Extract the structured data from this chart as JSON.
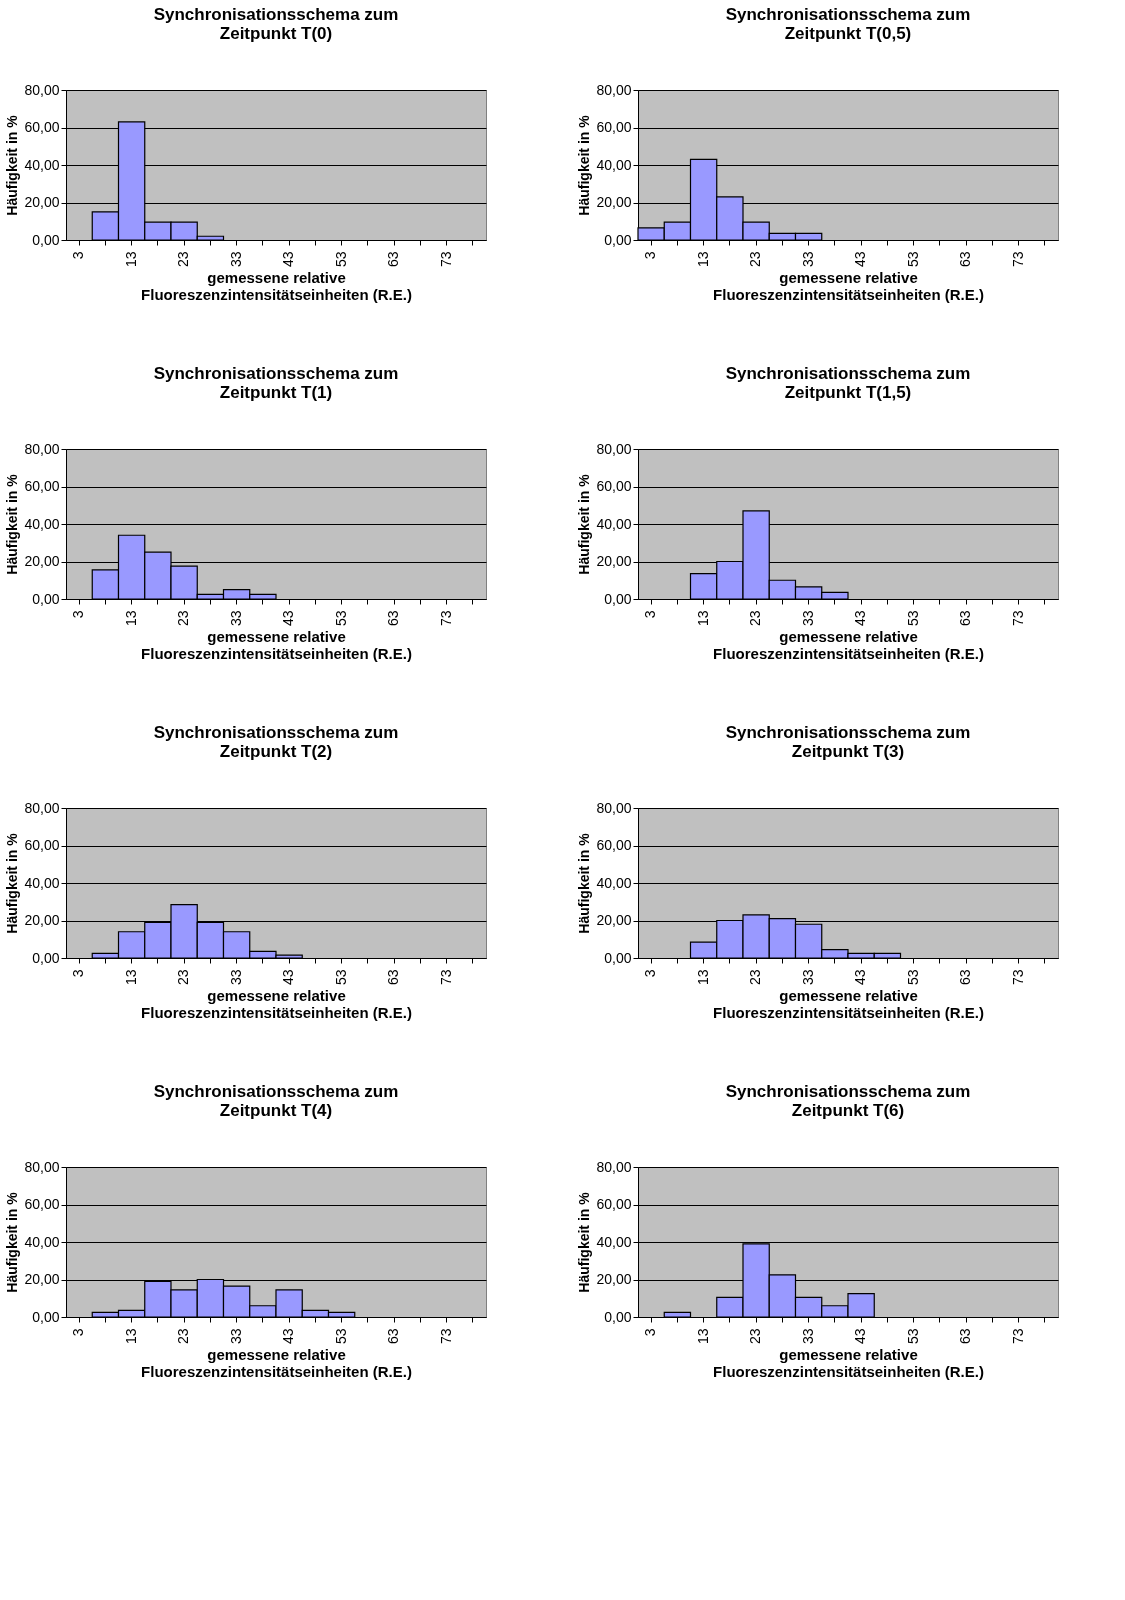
{
  "chart_data": [
    {
      "type": "bar",
      "title": "Synchronisationsschema zum\nZeitpunkt T(0)",
      "xlabel": "gemessene relative\nFluoreszenzintensitätseinheiten (R.E.)",
      "ylabel": "Häufigkeit in %",
      "categories": [
        "3",
        null,
        "13",
        null,
        "23",
        null,
        "33",
        null,
        "43",
        null,
        "53",
        null,
        "63",
        null,
        "73",
        null
      ],
      "values": [
        null,
        15,
        63,
        9.5,
        9.5,
        2,
        null,
        null,
        null,
        null,
        null,
        null,
        null,
        null,
        null,
        null
      ],
      "color": "#9999ff",
      "ylim": [
        0,
        80
      ],
      "yticks": [
        {
          "value": 0,
          "label": "0,00"
        },
        {
          "value": 20,
          "label": "20,00"
        },
        {
          "value": 40,
          "label": "40,00"
        },
        {
          "value": 60,
          "label": "60,00"
        },
        {
          "value": 80,
          "label": "80,00"
        }
      ],
      "grid": "y"
    },
    {
      "type": "bar",
      "title": "Synchronisationsschema zum\nZeitpunkt T(0,5)",
      "xlabel": "gemessene relative\nFluoreszenzintensitätseinheiten (R.E.)",
      "ylabel": "Häufigkeit in %",
      "categories": [
        "3",
        null,
        "13",
        null,
        "23",
        null,
        "33",
        null,
        "43",
        null,
        "53",
        null,
        "63",
        null,
        "73",
        null
      ],
      "values": [
        6.5,
        9.5,
        43,
        23,
        9.5,
        3.5,
        3.5,
        null,
        null,
        null,
        null,
        null,
        null,
        null,
        null,
        null
      ],
      "color": "#9999ff",
      "ylim": [
        0,
        80
      ],
      "yticks": [
        {
          "value": 0,
          "label": "0,00"
        },
        {
          "value": 20,
          "label": "20,00"
        },
        {
          "value": 40,
          "label": "40,00"
        },
        {
          "value": 60,
          "label": "60,00"
        },
        {
          "value": 80,
          "label": "80,00"
        }
      ],
      "grid": "y"
    },
    {
      "type": "bar",
      "title": "Synchronisationsschema zum\nZeitpunkt T(1)",
      "xlabel": "gemessene relative\nFluoreszenzintensitätseinheiten (R.E.)",
      "ylabel": "Häufigkeit in %",
      "categories": [
        "3",
        null,
        "13",
        null,
        "23",
        null,
        "33",
        null,
        "43",
        null,
        "53",
        null,
        "63",
        null,
        "73",
        null
      ],
      "values": [
        null,
        15.5,
        34,
        25,
        17.5,
        2.5,
        5,
        2.5,
        null,
        null,
        null,
        null,
        null,
        null,
        null,
        null
      ],
      "color": "#9999ff",
      "ylim": [
        0,
        80
      ],
      "yticks": [
        {
          "value": 0,
          "label": "0,00"
        },
        {
          "value": 20,
          "label": "20,00"
        },
        {
          "value": 40,
          "label": "40,00"
        },
        {
          "value": 60,
          "label": "60,00"
        },
        {
          "value": 80,
          "label": "80,00"
        }
      ],
      "grid": "y"
    },
    {
      "type": "bar",
      "title": "Synchronisationsschema zum\nZeitpunkt T(1,5)",
      "xlabel": "gemessene relative\nFluoreszenzintensitätseinheiten (R.E.)",
      "ylabel": "Häufigkeit in %",
      "categories": [
        "3",
        null,
        "13",
        null,
        "23",
        null,
        "33",
        null,
        "43",
        null,
        "53",
        null,
        "63",
        null,
        "73",
        null
      ],
      "values": [
        null,
        null,
        13.5,
        20,
        47,
        10,
        6.5,
        3.5,
        null,
        null,
        null,
        null,
        null,
        null,
        null,
        null
      ],
      "color": "#9999ff",
      "ylim": [
        0,
        80
      ],
      "yticks": [
        {
          "value": 0,
          "label": "0,00"
        },
        {
          "value": 20,
          "label": "20,00"
        },
        {
          "value": 40,
          "label": "40,00"
        },
        {
          "value": 60,
          "label": "60,00"
        },
        {
          "value": 80,
          "label": "80,00"
        }
      ],
      "grid": "y"
    },
    {
      "type": "bar",
      "title": "Synchronisationsschema zum\nZeitpunkt T(2)",
      "xlabel": "gemessene relative\nFluoreszenzintensitätseinheiten (R.E.)",
      "ylabel": "Häufigkeit in %",
      "categories": [
        "3",
        null,
        "13",
        null,
        "23",
        null,
        "33",
        null,
        "43",
        null,
        "53",
        null,
        "63",
        null,
        "73",
        null
      ],
      "values": [
        null,
        2.5,
        14,
        19,
        28.5,
        19,
        14,
        3.5,
        1.5,
        null,
        null,
        null,
        null,
        null,
        null,
        null
      ],
      "color": "#9999ff",
      "ylim": [
        0,
        80
      ],
      "yticks": [
        {
          "value": 0,
          "label": "0,00"
        },
        {
          "value": 20,
          "label": "20,00"
        },
        {
          "value": 40,
          "label": "40,00"
        },
        {
          "value": 60,
          "label": "60,00"
        },
        {
          "value": 80,
          "label": "80,00"
        }
      ],
      "grid": "y"
    },
    {
      "type": "bar",
      "title": "Synchronisationsschema zum\nZeitpunkt T(3)",
      "xlabel": "gemessene relative\nFluoreszenzintensitätseinheiten (R.E.)",
      "ylabel": "Häufigkeit in %",
      "categories": [
        "3",
        null,
        "13",
        null,
        "23",
        null,
        "33",
        null,
        "43",
        null,
        "53",
        null,
        "63",
        null,
        "73",
        null
      ],
      "values": [
        null,
        null,
        8.5,
        20,
        23,
        21,
        18,
        4.5,
        2.5,
        2.5,
        null,
        null,
        null,
        null,
        null,
        null
      ],
      "color": "#9999ff",
      "ylim": [
        0,
        80
      ],
      "yticks": [
        {
          "value": 0,
          "label": "0,00"
        },
        {
          "value": 20,
          "label": "20,00"
        },
        {
          "value": 40,
          "label": "40,00"
        },
        {
          "value": 60,
          "label": "60,00"
        },
        {
          "value": 80,
          "label": "80,00"
        }
      ],
      "grid": "y"
    },
    {
      "type": "bar",
      "title": "Synchronisationsschema zum\nZeitpunkt T(4)",
      "xlabel": "gemessene relative\nFluoreszenzintensitätseinheiten (R.E.)",
      "ylabel": "Häufigkeit in %",
      "categories": [
        "3",
        null,
        "13",
        null,
        "23",
        null,
        "33",
        null,
        "43",
        null,
        "53",
        null,
        "63",
        null,
        "73",
        null
      ],
      "values": [
        null,
        2.5,
        3.5,
        19,
        14.5,
        20,
        16.5,
        6,
        14.5,
        3.5,
        2.5,
        null,
        null,
        null,
        null,
        null
      ],
      "color": "#9999ff",
      "ylim": [
        0,
        80
      ],
      "yticks": [
        {
          "value": 0,
          "label": "0,00"
        },
        {
          "value": 20,
          "label": "20,00"
        },
        {
          "value": 40,
          "label": "40,00"
        },
        {
          "value": 60,
          "label": "60,00"
        },
        {
          "value": 80,
          "label": "80,00"
        }
      ],
      "grid": "y"
    },
    {
      "type": "bar",
      "title": "Synchronisationsschema zum\nZeitpunkt T(6)",
      "xlabel": "gemessene relative\nFluoreszenzintensitätseinheiten (R.E.)",
      "ylabel": "Häufigkeit in %",
      "categories": [
        "3",
        null,
        "13",
        null,
        "23",
        null,
        "33",
        null,
        "43",
        null,
        "53",
        null,
        "63",
        null,
        "73",
        null
      ],
      "values": [
        null,
        2.5,
        null,
        10.5,
        39,
        22.5,
        10.5,
        6,
        12.5,
        null,
        null,
        null,
        null,
        null,
        null,
        null
      ],
      "color": "#9999ff",
      "ylim": [
        0,
        80
      ],
      "yticks": [
        {
          "value": 0,
          "label": "0,00"
        },
        {
          "value": 20,
          "label": "20,00"
        },
        {
          "value": 40,
          "label": "40,00"
        },
        {
          "value": 60,
          "label": "60,00"
        },
        {
          "value": 80,
          "label": "80,00"
        }
      ],
      "grid": "y"
    }
  ]
}
